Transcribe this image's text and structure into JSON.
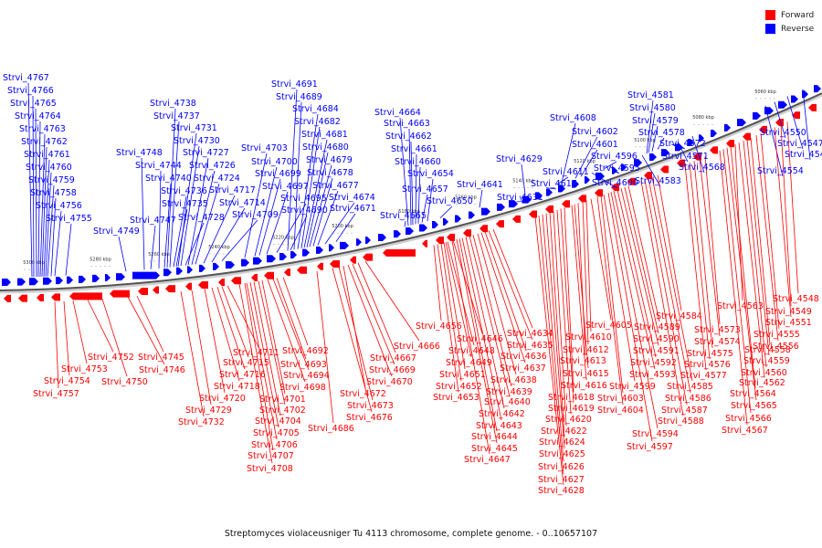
{
  "legend": {
    "forward": "Forward",
    "reverse": "Reverse",
    "forward_color": "#ff0000",
    "reverse_color": "#0000ff"
  },
  "caption": "Streptomyces violaceusniger Tu 4113 chromosome, complete genome. - 0..10657107",
  "scale_labels": [
    "5300 kbp",
    "5280 kbp",
    "5260 kbp",
    "5240 kbp",
    "5220 kbp",
    "5200 kbp",
    "5180 kbp",
    "5160 kbp",
    "5140 kbp",
    "5120 kbp",
    "5100 kbp",
    "5080 kbp",
    "5060 kbp"
  ],
  "reverse_genes": [
    "Strvi_4767",
    "Strvi_4766",
    "Strvi_4765",
    "Strvi_4764",
    "Strvi_4763",
    "Strvi_4762",
    "Strvi_4761",
    "Strvi_4760",
    "Strvi_4759",
    "Strvi_4758",
    "Strvi_4756",
    "Strvi_4755",
    "Strvi_4749",
    "Strvi_4748",
    "Strvi_4747",
    "Strvi_4744",
    "Strvi_4740",
    "Strvi_4738",
    "Strvi_4737",
    "Strvi_4736",
    "Strvi_4735",
    "Strvi_4731",
    "Strvi_4730",
    "Strvi_4728",
    "Strvi_4727",
    "Strvi_4726",
    "Strvi_4724",
    "Strvi_4717",
    "Strvi_4714",
    "Strvi_4709",
    "Strvi_4703",
    "Strvi_4700",
    "Strvi_4699",
    "Strvi_4697",
    "Strvi_4695",
    "Strvi_4691",
    "Strvi_4690",
    "Strvi_4689",
    "Strvi_4684",
    "Strvi_4682",
    "Strvi_4681",
    "Strvi_4680",
    "Strvi_4679",
    "Strvi_4678",
    "Strvi_4677",
    "Strvi_4674",
    "Strvi_4671",
    "Strvi_4665",
    "Strvi_4664",
    "Strvi_4663",
    "Strvi_4662",
    "Strvi_4661",
    "Strvi_4660",
    "Strvi_4657",
    "Strvi_4654",
    "Strvi_4650",
    "Strvi_4641",
    "Strvi_4631",
    "Strvi_4629",
    "Strvi_4617",
    "Strvi_4611",
    "Strvi_4608",
    "Strvi_4602",
    "Strvi_4601",
    "Strvi_4600",
    "Strvi_4596",
    "Strvi_4595",
    "Strvi_4583",
    "Strvi_4581",
    "Strvi_4580",
    "Strvi_4579",
    "Strvi_4578",
    "Strvi_4572",
    "Strvi_4571",
    "Strvi_4568",
    "Strvi_4554",
    "Strvi_4550",
    "Strvi_4547",
    "Strvi_4544"
  ],
  "forward_genes": [
    "Strvi_4757",
    "Strvi_4754",
    "Strvi_4753",
    "Strvi_4752",
    "Strvi_4750",
    "Strvi_4746",
    "Strvi_4745",
    "Strvi_4732",
    "Strvi_4729",
    "Strvi_4720",
    "Strvi_4718",
    "Strvi_4716",
    "Strvi_4715",
    "Strvi_4711",
    "Strvi_4708",
    "Strvi_4707",
    "Strvi_4706",
    "Strvi_4705",
    "Strvi_4704",
    "Strvi_4702",
    "Strvi_4701",
    "Strvi_4698",
    "Strvi_4694",
    "Strvi_4693",
    "Strvi_4692",
    "Strvi_4686",
    "Strvi_4676",
    "Strvi_4673",
    "Strvi_4672",
    "Strvi_4670",
    "Strvi_4669",
    "Strvi_4667",
    "Strvi_4666",
    "Strvi_4656",
    "Strvi_4653",
    "Strvi_4652",
    "Strvi_4651",
    "Strvi_4649",
    "Strvi_4648",
    "Strvi_4647",
    "Strvi_4646",
    "Strvi_4645",
    "Strvi_4644",
    "Strvi_4643",
    "Strvi_4642",
    "Strvi_4640",
    "Strvi_4639",
    "Strvi_4638",
    "Strvi_4637",
    "Strvi_4636",
    "Strvi_4635",
    "Strvi_4634",
    "Strvi_4628",
    "Strvi_4627",
    "Strvi_4626",
    "Strvi_4625",
    "Strvi_4624",
    "Strvi_4622",
    "Strvi_4620",
    "Strvi_4619",
    "Strvi_4618",
    "Strvi_4616",
    "Strvi_4615",
    "Strvi_4613",
    "Strvi_4612",
    "Strvi_4610",
    "Strvi_4605",
    "Strvi_4604",
    "Strvi_4603",
    "Strvi_4599",
    "Strvi_4597",
    "Strvi_4594",
    "Strvi_4593",
    "Strvi_4592",
    "Strvi_4591",
    "Strvi_4590",
    "Strvi_4589",
    "Strvi_4588",
    "Strvi_4587",
    "Strvi_4586",
    "Strvi_4585",
    "Strvi_4584",
    "Strvi_4577",
    "Strvi_4576",
    "Strvi_4575",
    "Strvi_4574",
    "Strvi_4573",
    "Strvi_4567",
    "Strvi_4566",
    "Strvi_4565",
    "Strvi_4564",
    "Strvi_4563",
    "Strvi_4562",
    "Strvi_4560",
    "Strvi_4559",
    "Strvi_4558",
    "Strvi_4556",
    "Strvi_4555",
    "Strvi_4551",
    "Strvi_4549",
    "Strvi_4548"
  ]
}
